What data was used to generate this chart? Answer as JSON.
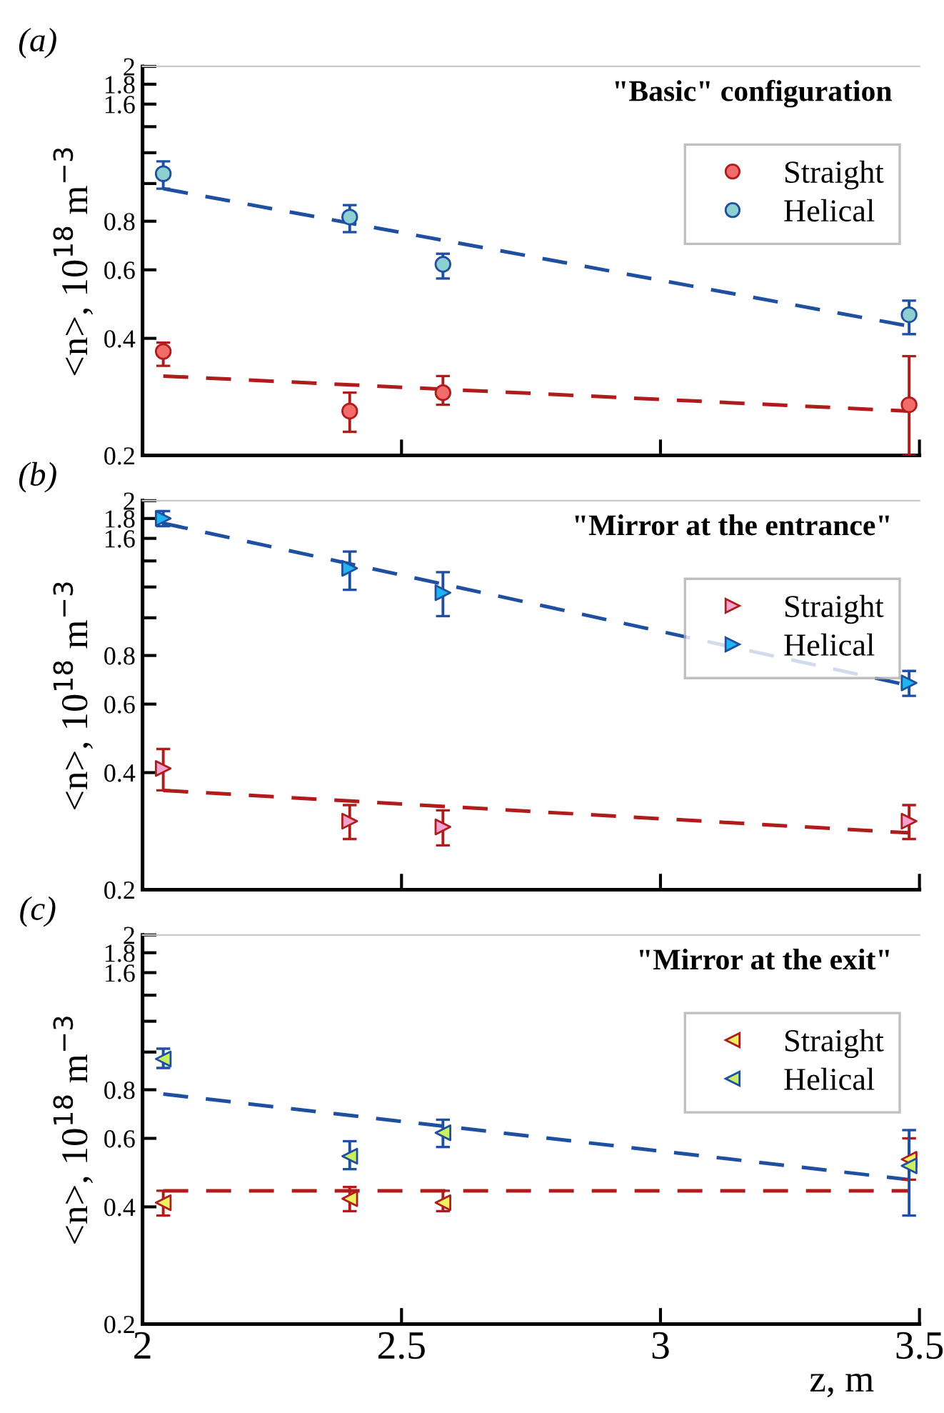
{
  "chart_data": [
    {
      "type": "scatter",
      "title": "\"Basic\" configuration",
      "ylabel": "<n>, 10$^{18}$ m$^{−3}$",
      "annotations": [
        "(a)"
      ],
      "xlim": [
        2,
        3.5
      ],
      "xticks": [
        2,
        2.5,
        3,
        3.5
      ],
      "ylim": [
        0.2,
        2
      ],
      "yticks": [
        0.2,
        0.4,
        0.6,
        0.8,
        {
          "value": 1.0,
          "label": null
        },
        {
          "value": 1.2,
          "label": null
        },
        {
          "value": 1.4,
          "label": null
        },
        1.6,
        1.8,
        2
      ],
      "log": true,
      "grid": false,
      "legend": "top right",
      "tick_labels": "y",
      "series": [
        {
          "name": "Straight",
          "marker": "circle",
          "color": "#b01c1c",
          "colors": [
            "#f26c6c",
            "#f26c6c",
            "#f26c6c",
            "#f26c6c"
          ],
          "x": [
            2.04,
            2.4,
            2.58,
            3.48
          ],
          "values": [
            0.37,
            0.26,
            0.29,
            0.27
          ],
          "errors": [
            [
              0.34,
              0.39
            ],
            [
              0.23,
              0.29
            ],
            [
              0.27,
              0.32
            ],
            [
              0.2,
              0.36
            ]
          ]
        },
        {
          "name": "Helical",
          "marker": "circle",
          "color": "#1f4fa0",
          "colors": [
            "#8ecfd0",
            "#8ecfd0",
            "#8ecfd0",
            "#8ecfd0"
          ],
          "x": [
            2.04,
            2.4,
            2.58,
            3.48
          ],
          "values": [
            1.06,
            0.82,
            0.62,
            0.46
          ],
          "errors": [
            [
              0.97,
              1.14
            ],
            [
              0.75,
              0.88
            ],
            [
              0.57,
              0.66
            ],
            [
              0.41,
              0.5
            ]
          ]
        },
        {
          "type": "line",
          "line_style": "dashed",
          "color": "#b01c1c",
          "x": [
            2.04,
            3.48
          ],
          "values": [
            0.32,
            0.26
          ]
        },
        {
          "type": "line",
          "line_style": "dashed",
          "color": "#1f4fa0",
          "x": [
            2.04,
            3.48
          ],
          "values": [
            0.97,
            0.43
          ]
        }
      ]
    },
    {
      "type": "scatter",
      "title": "\"Mirror at the entrance\"",
      "ylabel": "<n>, 10$^{18}$ m$^{−3}$",
      "annotations": [
        "(b)"
      ],
      "xlim": [
        2,
        3.5
      ],
      "xticks": [
        2,
        2.5,
        3,
        3.5
      ],
      "ylim": [
        0.2,
        2
      ],
      "yticks": [
        0.2,
        0.4,
        0.6,
        0.8,
        {
          "value": 1.0,
          "label": null
        },
        {
          "value": 1.2,
          "label": null
        },
        {
          "value": 1.4,
          "label": null
        },
        1.6,
        1.8,
        2
      ],
      "log": true,
      "grid": false,
      "legend": "top right",
      "tick_labels": "y",
      "series": [
        {
          "name": "Straight",
          "marker": "triangle-right",
          "color": "#b01c1c",
          "colors": [
            "#f7a1d0",
            "#f7a1d0",
            "#f7a1d0",
            "#f7a1d0"
          ],
          "x": [
            2.04,
            2.4,
            2.58,
            3.48
          ],
          "values": [
            0.41,
            0.3,
            0.29,
            0.3
          ],
          "errors": [
            [
              0.36,
              0.46
            ],
            [
              0.27,
              0.33
            ],
            [
              0.26,
              0.32
            ],
            [
              0.27,
              0.33
            ]
          ]
        },
        {
          "name": "Helical",
          "marker": "triangle-right",
          "color": "#1f4fa0",
          "colors": [
            "#1fb5f0",
            "#1fb5f0",
            "#1fb5f0",
            "#1fb5f0"
          ],
          "x": [
            2.04,
            2.4,
            2.58,
            3.48
          ],
          "values": [
            1.8,
            1.34,
            1.16,
            0.68
          ],
          "errors": [
            [
              1.72,
              1.88
            ],
            [
              1.18,
              1.48
            ],
            [
              1.01,
              1.31
            ],
            [
              0.63,
              0.73
            ]
          ]
        },
        {
          "type": "line",
          "line_style": "dashed",
          "color": "#b01c1c",
          "x": [
            2.04,
            3.48
          ],
          "values": [
            0.36,
            0.28
          ]
        },
        {
          "type": "line",
          "line_style": "dashed",
          "color": "#1f4fa0",
          "x": [
            2.04,
            3.48
          ],
          "values": [
            1.75,
            0.67
          ]
        }
      ]
    },
    {
      "type": "scatter",
      "title": "\"Mirror at the exit\"",
      "xlabel": "z, m",
      "ylabel": "<n>, 10$^{18}$ m$^{−3}$",
      "annotations": [
        "(c)"
      ],
      "xlim": [
        2,
        3.5
      ],
      "xticks": [
        2,
        2.5,
        3,
        3.5
      ],
      "ylim": [
        0.2,
        2
      ],
      "yticks": [
        0.2,
        0.4,
        0.6,
        0.8,
        {
          "value": 1.0,
          "label": null
        },
        {
          "value": 1.2,
          "label": null
        },
        {
          "value": 1.4,
          "label": null
        },
        1.6,
        1.8,
        2
      ],
      "log": true,
      "grid": false,
      "legend": "top right",
      "series": [
        {
          "name": "Straight",
          "marker": "triangle-left",
          "color": "#b01c1c",
          "colors": [
            "#f0f060",
            "#f0f060",
            "#f0f060",
            "#f0f060"
          ],
          "x": [
            2.04,
            2.4,
            2.58,
            3.48
          ],
          "values": [
            0.41,
            0.42,
            0.41,
            0.53
          ],
          "errors": [
            [
              0.38,
              0.44
            ],
            [
              0.39,
              0.45
            ],
            [
              0.39,
              0.44
            ],
            [
              0.47,
              0.6
            ]
          ]
        },
        {
          "name": "Helical",
          "marker": "triangle-left",
          "color": "#1f4fa0",
          "colors": [
            "#c8f060",
            "#c8f060",
            "#c8f060",
            "#c8f060"
          ],
          "x": [
            2.04,
            2.4,
            2.58,
            3.48
          ],
          "values": [
            0.96,
            0.54,
            0.62,
            0.51
          ],
          "errors": [
            [
              0.91,
              1.02
            ],
            [
              0.5,
              0.59
            ],
            [
              0.57,
              0.67
            ],
            [
              0.38,
              0.63
            ]
          ]
        },
        {
          "type": "line",
          "line_style": "dashed",
          "color": "#b01c1c",
          "x": [
            2.04,
            3.48
          ],
          "values": [
            0.44,
            0.44
          ]
        },
        {
          "type": "line",
          "line_style": "dashed",
          "color": "#1f4fa0",
          "x": [
            2.04,
            3.48
          ],
          "values": [
            0.78,
            0.47
          ]
        }
      ]
    }
  ]
}
